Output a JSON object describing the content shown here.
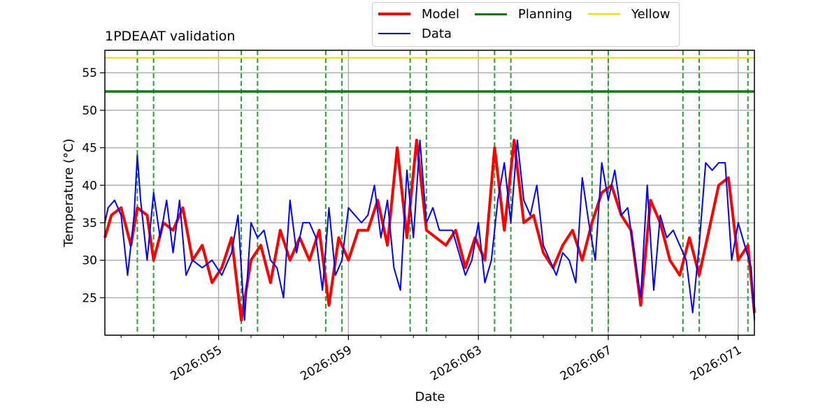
{
  "chart_data": {
    "type": "line",
    "title": "1PDEAAT validation",
    "xlabel": "Date",
    "ylabel": "Temperature ($^\\circ$C)",
    "ylabel_display": "Temperature (°C)",
    "xlim": [
      2026.0515,
      2026.0715
    ],
    "ylim": [
      20.0,
      58.0
    ],
    "x_ticks": [
      {
        "value": 2026.055,
        "label": "2026:055"
      },
      {
        "value": 2026.059,
        "label": "2026:059"
      },
      {
        "value": 2026.063,
        "label": "2026:063"
      },
      {
        "value": 2026.067,
        "label": "2026:067"
      },
      {
        "value": 2026.071,
        "label": "2026:071"
      }
    ],
    "y_ticks": [
      25,
      30,
      35,
      40,
      45,
      50,
      55
    ],
    "planning_limit": 52.5,
    "yellow_limit": 57.0,
    "vertical_markers": [
      2026.0525,
      2026.053,
      2026.0557,
      2026.0562,
      2026.0583,
      2026.0588,
      2026.0609,
      2026.0614,
      2026.0635,
      2026.064,
      2026.0665,
      2026.067,
      2026.0693,
      2026.0698,
      2026.0713
    ],
    "series": [
      {
        "name": "Model",
        "color": "#ff0000",
        "x": [
          2026.0515,
          2026.0517,
          2026.052,
          2026.0523,
          2026.0525,
          2026.0528,
          2026.053,
          2026.0533,
          2026.0536,
          2026.0539,
          2026.0542,
          2026.0545,
          2026.0548,
          2026.0551,
          2026.0554,
          2026.0557,
          2026.056,
          2026.0563,
          2026.0566,
          2026.0569,
          2026.0572,
          2026.0575,
          2026.0578,
          2026.0581,
          2026.0584,
          2026.0587,
          2026.059,
          2026.0593,
          2026.0596,
          2026.0599,
          2026.0602,
          2026.0605,
          2026.0608,
          2026.0611,
          2026.0614,
          2026.0617,
          2026.062,
          2026.0623,
          2026.0626,
          2026.0629,
          2026.0632,
          2026.0635,
          2026.0638,
          2026.0641,
          2026.0644,
          2026.0647,
          2026.065,
          2026.0653,
          2026.0656,
          2026.0659,
          2026.0662,
          2026.0665,
          2026.0668,
          2026.0671,
          2026.0674,
          2026.0677,
          2026.068,
          2026.0683,
          2026.0686,
          2026.0689,
          2026.0692,
          2026.0695,
          2026.0698,
          2026.0701,
          2026.0704,
          2026.0707,
          2026.071,
          2026.0713,
          2026.0715
        ],
        "y": [
          33,
          36,
          37,
          32,
          37,
          36,
          30,
          35,
          34,
          37,
          30,
          32,
          27,
          29,
          33,
          22,
          30,
          32,
          27,
          34,
          30,
          33,
          30,
          34,
          24,
          33,
          30,
          34,
          34,
          38,
          32,
          45,
          33,
          46,
          34,
          33,
          32,
          34,
          29,
          33,
          30,
          45,
          34,
          46,
          35,
          36,
          31,
          29,
          32,
          34,
          30,
          35,
          39,
          40,
          36,
          34,
          24,
          38,
          35,
          30,
          28,
          33,
          28,
          34,
          40,
          41,
          30,
          32,
          23
        ],
        "lw": 4
      },
      {
        "name": "Data",
        "color": "#0000ff",
        "x": [
          2026.0515,
          2026.0516,
          2026.0518,
          2026.052,
          2026.0522,
          2026.0523,
          2026.0524,
          2026.0525,
          2026.0526,
          2026.0527,
          2026.0528,
          2026.053,
          2026.0532,
          2026.0534,
          2026.0536,
          2026.0538,
          2026.054,
          2026.0542,
          2026.0545,
          2026.0548,
          2026.0551,
          2026.0554,
          2026.0556,
          2026.0558,
          2026.056,
          2026.0562,
          2026.0564,
          2026.0566,
          2026.0568,
          2026.057,
          2026.0572,
          2026.0574,
          2026.0576,
          2026.0578,
          2026.058,
          2026.0582,
          2026.0584,
          2026.0586,
          2026.0588,
          2026.059,
          2026.0592,
          2026.0594,
          2026.0596,
          2026.0598,
          2026.06,
          2026.0602,
          2026.0604,
          2026.0606,
          2026.0608,
          2026.061,
          2026.0612,
          2026.0614,
          2026.0616,
          2026.0618,
          2026.062,
          2026.0622,
          2026.0624,
          2026.0626,
          2026.0628,
          2026.063,
          2026.0632,
          2026.0634,
          2026.0636,
          2026.0638,
          2026.064,
          2026.0642,
          2026.0644,
          2026.0646,
          2026.0648,
          2026.065,
          2026.0652,
          2026.0654,
          2026.0656,
          2026.0658,
          2026.066,
          2026.0662,
          2026.0664,
          2026.0666,
          2026.0668,
          2026.067,
          2026.0672,
          2026.0674,
          2026.0676,
          2026.0678,
          2026.068,
          2026.0682,
          2026.0684,
          2026.0686,
          2026.0688,
          2026.069,
          2026.0692,
          2026.0694,
          2026.0696,
          2026.0698,
          2026.07,
          2026.0702,
          2026.0704,
          2026.0706,
          2026.0708,
          2026.071,
          2026.0712,
          2026.0714,
          2026.0715
        ],
        "y": [
          35,
          37,
          38,
          36,
          28,
          32,
          36,
          44,
          38,
          34,
          30,
          39,
          33,
          38,
          31,
          38,
          28,
          30,
          29,
          30,
          28,
          31,
          36,
          22,
          35,
          33,
          34,
          30,
          29,
          25,
          38,
          31,
          35,
          35,
          33,
          26,
          37,
          28,
          30,
          37,
          36,
          35,
          36,
          40,
          33,
          38,
          29,
          26,
          42,
          33,
          46,
          35,
          37,
          34,
          34,
          34,
          31,
          28,
          30,
          35,
          27,
          30,
          38,
          43,
          35,
          46,
          38,
          36,
          40,
          32,
          30,
          28,
          31,
          30,
          27,
          41,
          35,
          30,
          43,
          38,
          42,
          36,
          37,
          31,
          25,
          40,
          26,
          36,
          33,
          34,
          32,
          30,
          23,
          32,
          43,
          42,
          43,
          43,
          30,
          35,
          32,
          29,
          22
        ],
        "lw": 2
      }
    ],
    "legend": {
      "location": "upper-center",
      "entries": [
        {
          "label": "Model",
          "color": "#ff0000"
        },
        {
          "label": "Data",
          "color": "#0000ff"
        },
        {
          "label": "Planning",
          "color": "#008000"
        },
        {
          "label": "Yellow",
          "color": "#ffd700"
        }
      ]
    },
    "grid": true
  }
}
